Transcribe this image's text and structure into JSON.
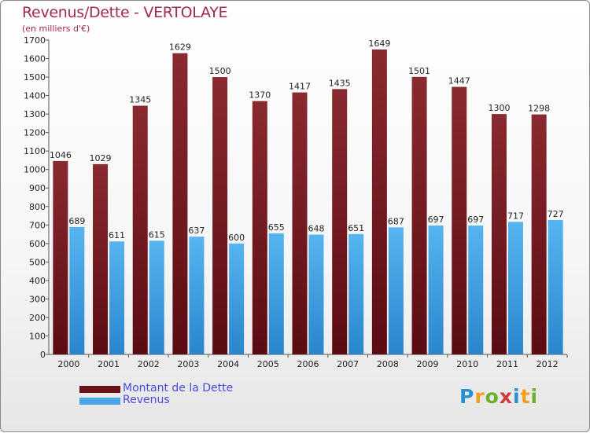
{
  "header": {
    "title": "Revenus/Dette - VERTOLAYE",
    "subtitle": "(en milliers d'€)"
  },
  "legend": {
    "items": [
      {
        "label": "Montant de la Dette",
        "color": "#6b1218"
      },
      {
        "label": "Revenus",
        "color": "#4aa6e6"
      }
    ]
  },
  "logo": {
    "text": "Proxiti",
    "letters": [
      "P",
      "r",
      "o",
      "x",
      "i",
      "t",
      "i"
    ]
  },
  "colors": {
    "dette_light": "#8a2a30",
    "dette_dark": "#5a0c12",
    "revenus_light": "#56b4f0",
    "revenus_dark": "#2a86cc",
    "axis": "#555555",
    "grid": "#cccccc"
  },
  "chart_data": {
    "type": "bar",
    "title": "Revenus/Dette - VERTOLAYE",
    "ylabel": "(en milliers d'€)",
    "xlabel": "",
    "categories": [
      "2000",
      "2001",
      "2002",
      "2003",
      "2004",
      "2005",
      "2006",
      "2007",
      "2008",
      "2009",
      "2010",
      "2011",
      "2012"
    ],
    "series": [
      {
        "name": "Montant de la Dette",
        "values": [
          1046,
          1029,
          1345,
          1629,
          1500,
          1370,
          1417,
          1435,
          1649,
          1501,
          1447,
          1300,
          1298
        ]
      },
      {
        "name": "Revenus",
        "values": [
          689,
          611,
          615,
          637,
          600,
          655,
          648,
          651,
          687,
          697,
          697,
          717,
          727
        ]
      }
    ],
    "ylim": [
      0,
      1700
    ],
    "yticks": [
      0,
      100,
      200,
      300,
      400,
      500,
      600,
      700,
      800,
      900,
      1000,
      1100,
      1200,
      1300,
      1400,
      1500,
      1600,
      1700
    ],
    "grid": false,
    "legend_position": "bottom-left"
  }
}
